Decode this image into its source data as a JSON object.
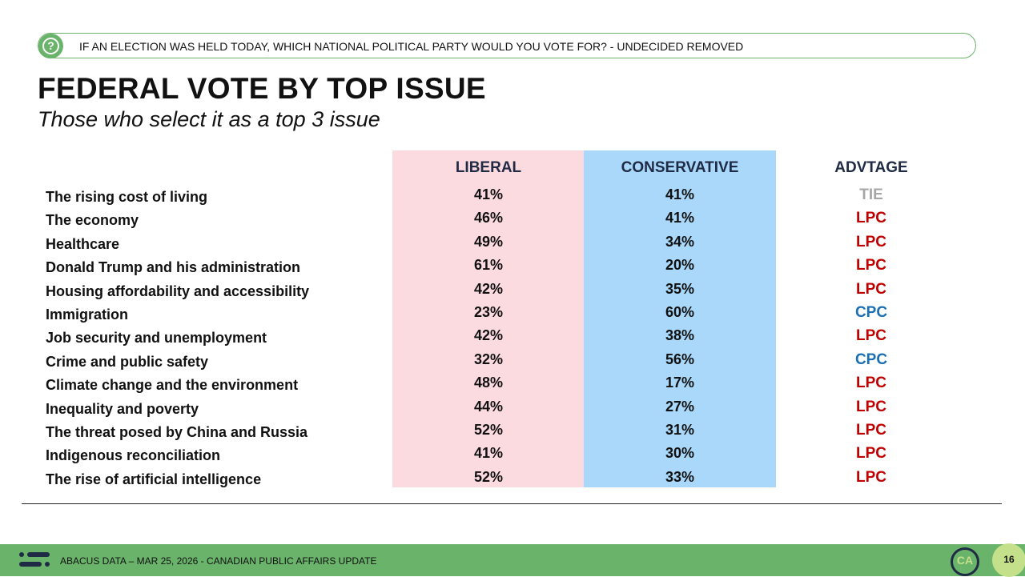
{
  "header": {
    "question": "IF AN ELECTION WAS HELD TODAY, WHICH NATIONAL POLITICAL PARTY WOULD YOU VOTE FOR? - UNDECIDED REMOVED",
    "title": "FEDERAL VOTE BY TOP ISSUE",
    "subtitle": "Those who select it as a top 3 issue"
  },
  "table": {
    "columns": [
      "LIBERAL",
      "CONSERVATIVE",
      "ADVTAGE"
    ],
    "rows": [
      {
        "issue": "The rising cost of living",
        "liberal": "41%",
        "conservative": "41%",
        "advantage": "TIE",
        "advantage_color": "#a6a6a6"
      },
      {
        "issue": "The economy",
        "liberal": "46%",
        "conservative": "41%",
        "advantage": "LPC",
        "advantage_color": "#c00000"
      },
      {
        "issue": "Healthcare",
        "liberal": "49%",
        "conservative": "34%",
        "advantage": "LPC",
        "advantage_color": "#c00000"
      },
      {
        "issue": "Donald Trump and his administration",
        "liberal": "61%",
        "conservative": "20%",
        "advantage": "LPC",
        "advantage_color": "#c00000"
      },
      {
        "issue": "Housing affordability and accessibility",
        "liberal": "42%",
        "conservative": "35%",
        "advantage": "LPC",
        "advantage_color": "#c00000"
      },
      {
        "issue": "Immigration",
        "liberal": "23%",
        "conservative": "60%",
        "advantage": "CPC",
        "advantage_color": "#1a6fb5"
      },
      {
        "issue": "Job security and unemployment",
        "liberal": "42%",
        "conservative": "38%",
        "advantage": "LPC",
        "advantage_color": "#c00000"
      },
      {
        "issue": "Crime and public safety",
        "liberal": "32%",
        "conservative": "56%",
        "advantage": "CPC",
        "advantage_color": "#1a6fb5"
      },
      {
        "issue": "Climate change and the environment",
        "liberal": "48%",
        "conservative": "17%",
        "advantage": "LPC",
        "advantage_color": "#c00000"
      },
      {
        "issue": "Inequality and poverty",
        "liberal": "44%",
        "conservative": "27%",
        "advantage": "LPC",
        "advantage_color": "#c00000"
      },
      {
        "issue": "The threat posed by China and Russia",
        "liberal": "52%",
        "conservative": "31%",
        "advantage": "LPC",
        "advantage_color": "#c00000"
      },
      {
        "issue": "Indigenous reconciliation",
        "liberal": "41%",
        "conservative": "30%",
        "advantage": "LPC",
        "advantage_color": "#c00000"
      },
      {
        "issue": "The rise of artificial intelligence",
        "liberal": "52%",
        "conservative": "33%",
        "advantage": "LPC",
        "advantage_color": "#c00000"
      }
    ]
  },
  "footer": {
    "source": "ABACUS DATA – MAR 25, 2026 - CANADIAN PUBLIC AFFAIRS UPDATE",
    "logo": "CA",
    "page": "16"
  }
}
